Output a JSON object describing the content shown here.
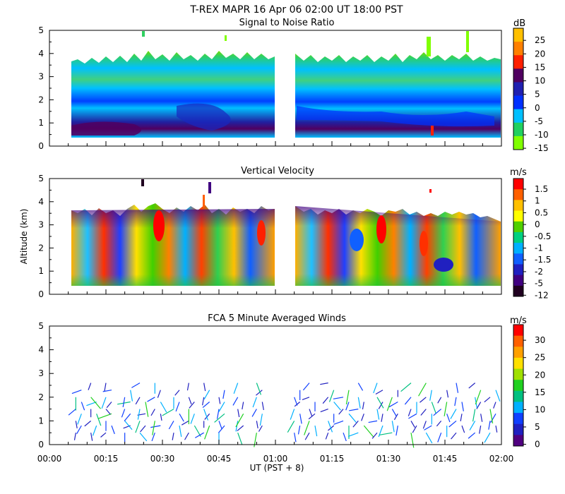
{
  "header": {
    "title": "T-REX  MAPR 16 Apr 06  02:00 UT  18:00  PST"
  },
  "xaxis": {
    "ticks": [
      "00:00",
      "00:15",
      "00:30",
      "00:45",
      "01:00",
      "01:15",
      "01:30",
      "01:45",
      "02:00"
    ],
    "tick_minutes": [
      0,
      15,
      30,
      45,
      60,
      75,
      90,
      105,
      120
    ],
    "label": "UT  (PST + 8)",
    "range_minutes": [
      0,
      120
    ]
  },
  "ylabel": "Altitude (km)",
  "chart_data": [
    {
      "type": "heatmap",
      "title": "Signal to Noise Ratio",
      "ylim": [
        0,
        5
      ],
      "yticks": [
        "0",
        "1",
        "2",
        "3",
        "4",
        "5"
      ],
      "units": "dB",
      "colorbar_labels": [
        "25",
        "20",
        "15",
        "10",
        "5",
        "0",
        "-5",
        "-10",
        "-15"
      ],
      "colorbar_colors": [
        "#ffc000",
        "#ff8000",
        "#ff2000",
        "#500060",
        "#2020b0",
        "#0030ff",
        "#00c0ff",
        "#20d060",
        "#80ff00"
      ],
      "data_gaps_minutes": [
        [
          54,
          65
        ]
      ],
      "description_values": {
        "top_of_echo_km": 3.6,
        "bottom_of_echo_km": 0.35
      }
    },
    {
      "type": "heatmap",
      "title": "Vertical Velocity",
      "ylim": [
        0,
        5
      ],
      "yticks": [
        "0",
        "1",
        "2",
        "3",
        "4",
        "5"
      ],
      "units": "m/s",
      "colorbar_labels": [
        "1.5",
        "1",
        "0.5",
        "0",
        "-0.5",
        "-1",
        "-1.5",
        "-2",
        "-5",
        "-12"
      ],
      "colorbar_colors": [
        "#ff0000",
        "#ff6000",
        "#ffc000",
        "#ffff00",
        "#50d000",
        "#00d080",
        "#00b0ff",
        "#1060ff",
        "#2020c0",
        "#400080",
        "#200020"
      ],
      "data_gaps_minutes": [
        [
          54,
          65
        ]
      ]
    },
    {
      "type": "scatter",
      "title": "FCA 5 Minute Averaged Winds",
      "ylim": [
        0,
        5
      ],
      "yticks": [
        "0",
        "1",
        "2",
        "3",
        "4",
        "5"
      ],
      "units": "m/s",
      "colorbar_labels": [
        "30",
        "25",
        "20",
        "15",
        "10",
        "5",
        "0"
      ],
      "colorbar_colors": [
        "#ff0000",
        "#ff6000",
        "#ffa000",
        "#ffe000",
        "#a0e000",
        "#20d020",
        "#00c080",
        "#00b0ff",
        "#1040ff",
        "#2020c0",
        "#500080"
      ],
      "wind_rows_km": [
        0.5,
        0.8,
        1.0,
        1.3,
        1.5,
        1.8,
        2.0,
        2.3,
        2.6
      ],
      "wind_times_minutes": [
        7,
        11,
        15,
        20,
        24,
        28,
        33,
        37,
        41,
        45,
        50,
        55,
        65,
        69,
        74,
        78,
        82,
        87,
        91,
        96,
        100,
        104,
        108,
        113,
        117
      ],
      "wind_speeds_ms": [
        3,
        4,
        2,
        6,
        8,
        5,
        3,
        4,
        7,
        9,
        11,
        14,
        6,
        4,
        2,
        5,
        8,
        3,
        12,
        15,
        10,
        7,
        4,
        5,
        9
      ],
      "wind_directions_deg": [
        190,
        210,
        170,
        200,
        230,
        160,
        180,
        250,
        140,
        220,
        200,
        260,
        190,
        170,
        210,
        150,
        240,
        200,
        180,
        220,
        160,
        230,
        190,
        210,
        170
      ]
    }
  ]
}
